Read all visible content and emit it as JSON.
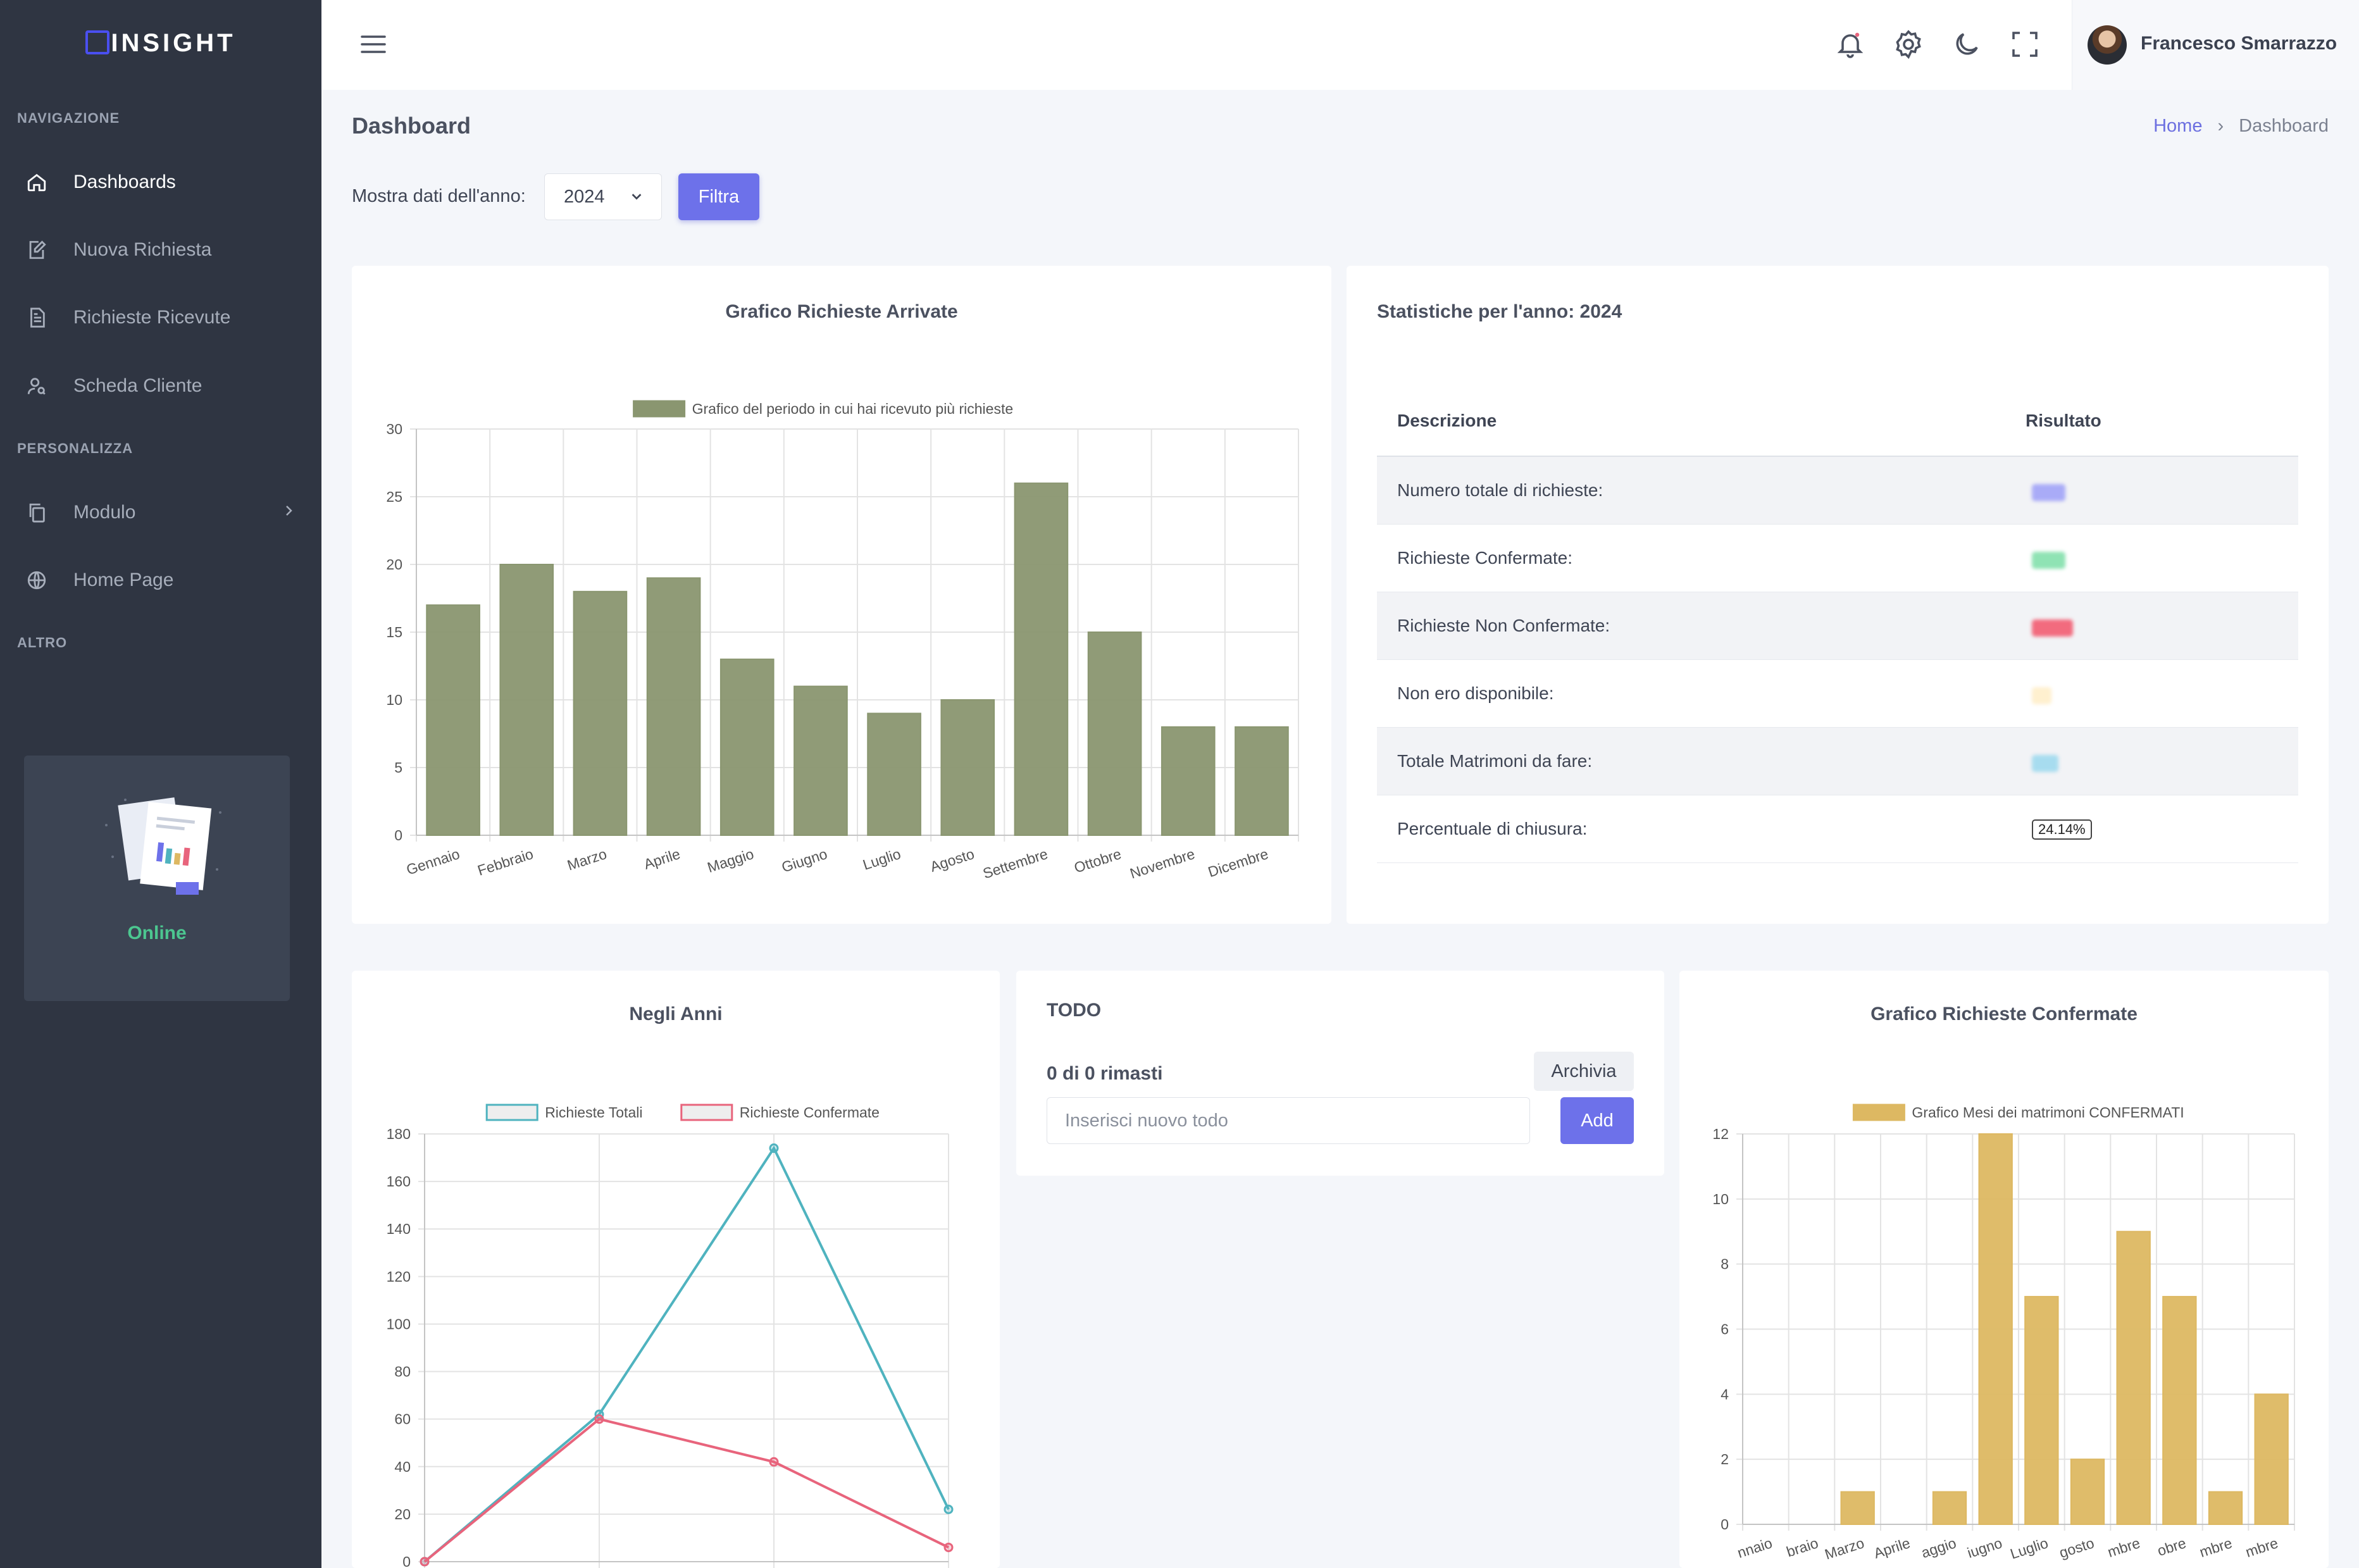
{
  "brand": {
    "name": "INSIGHT"
  },
  "sidebar": {
    "sections": [
      "NAVIGAZIONE",
      "PERSONALIZZA",
      "ALTRO"
    ],
    "items": [
      {
        "label": "Dashboards",
        "icon": "home-icon"
      },
      {
        "label": "Nuova Richiesta",
        "icon": "edit-document-icon"
      },
      {
        "label": "Richieste Ricevute",
        "icon": "document-icon"
      },
      {
        "label": "Scheda Cliente",
        "icon": "user-search-icon"
      },
      {
        "label": "Modulo",
        "icon": "copy-icon"
      },
      {
        "label": "Home Page",
        "icon": "globe-icon"
      }
    ],
    "status_card": {
      "status": "Online",
      "status_color": "#4cc790"
    }
  },
  "topbar": {
    "icons": [
      "menu-icon",
      "bell-icon",
      "gear-icon",
      "moon-icon",
      "fullscreen-icon"
    ],
    "user_name": "Francesco Smarrazzo"
  },
  "page": {
    "title": "Dashboard",
    "breadcrumb": [
      "Home",
      "Dashboard"
    ],
    "filter_label": "Mostra dati dell'anno:",
    "year": "2024",
    "filter_button": "Filtra"
  },
  "stats": {
    "title": "Statistiche per l'anno: 2024",
    "headers": [
      "Descrizione",
      "Risultato"
    ],
    "rows": [
      {
        "label": "Numero totale di richieste:",
        "badge_color": "#a9abf7"
      },
      {
        "label": "Richieste Confermate:",
        "badge_color": "#8fe3b4"
      },
      {
        "label": "Richieste Non Confermate:",
        "badge_color": "#f26b7e"
      },
      {
        "label": "Non ero disponibile:",
        "badge_color": "#fff0cf"
      },
      {
        "label": "Totale Matrimoni da fare:",
        "badge_color": "#a7dcef"
      },
      {
        "label": "Percentuale di chiusura:",
        "value": "24.14%"
      }
    ]
  },
  "todo": {
    "title": "TODO",
    "count_text": "0 di 0 rimasti",
    "archive_button": "Archivia",
    "input_placeholder": "Inserisci nuovo todo",
    "add_button": "Add"
  },
  "chart_data": [
    {
      "type": "bar",
      "title": "Grafico Richieste Arrivate",
      "categories": [
        "Gennaio",
        "Febbraio",
        "Marzo",
        "Aprile",
        "Maggio",
        "Giugno",
        "Luglio",
        "Agosto",
        "Settembre",
        "Ottobre",
        "Novembre",
        "Dicembre"
      ],
      "series": [
        {
          "name": "Grafico del periodo in cui hai ricevuto più richieste",
          "values": [
            17,
            20,
            18,
            19,
            13,
            11,
            9,
            10,
            26,
            15,
            8,
            8
          ],
          "color": "#8a9670"
        }
      ],
      "ylim": [
        0,
        30
      ],
      "yticks": [
        0,
        5,
        10,
        15,
        20,
        25,
        30
      ],
      "grid": true,
      "legend": "top"
    },
    {
      "type": "line",
      "title": "Negli Anni",
      "series": [
        {
          "name": "Richieste Totali",
          "values": [
            0,
            62,
            174,
            22
          ],
          "color": "#4fb3bf"
        },
        {
          "name": "Richieste Confermate",
          "values": [
            0,
            60,
            42,
            6
          ],
          "color": "#e8647c"
        }
      ],
      "ylim": [
        0,
        180
      ],
      "yticks": [
        0,
        20,
        40,
        60,
        80,
        100,
        120,
        140,
        160,
        180
      ],
      "grid": true,
      "legend": "top"
    },
    {
      "type": "bar",
      "title": "Grafico Richieste Confermate",
      "categories": [
        "Gennaio",
        "Febbraio",
        "Marzo",
        "Aprile",
        "Maggio",
        "Giugno",
        "Luglio",
        "Agosto",
        "Settembre",
        "Ottobre",
        "Novembre",
        "Dicembre"
      ],
      "category_labels_visible": [
        "nnaio",
        "braio",
        "Marzo",
        "Aprile",
        "aggio",
        "iugno",
        "Luglio",
        "gosto",
        "mbre",
        "obre",
        "mbre",
        "mbre"
      ],
      "series": [
        {
          "name": "Grafico Mesi dei matrimoni CONFERMATI",
          "values": [
            0,
            0,
            1,
            0,
            1,
            12,
            7,
            2,
            9,
            7,
            1,
            4
          ],
          "color": "#ddb862"
        }
      ],
      "ylim": [
        0,
        12
      ],
      "yticks": [
        0,
        2,
        4,
        6,
        8,
        10,
        12
      ],
      "grid": true,
      "legend": "top"
    }
  ]
}
